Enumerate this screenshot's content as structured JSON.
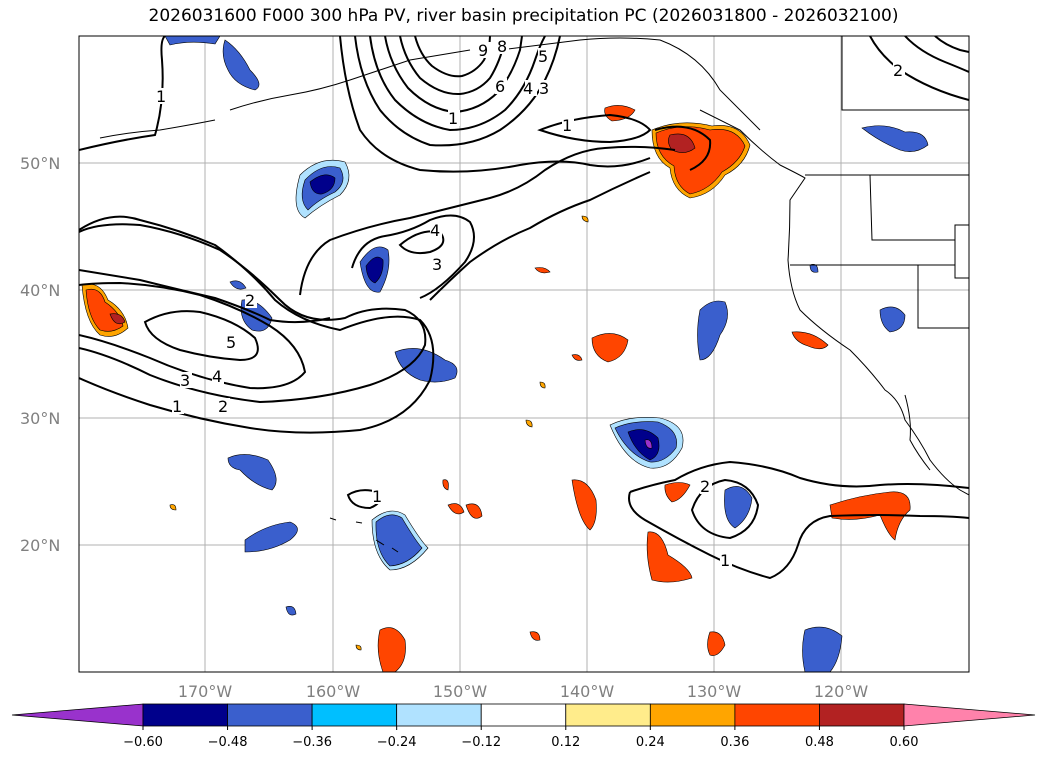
{
  "title": "2026031600 F000 300 hPa PV, river basin precipitation PC (2026031800 - 2026032100)",
  "lat_labels": [
    "50°N",
    "40°N",
    "30°N",
    "20°N"
  ],
  "lon_labels": [
    "170°W",
    "160°W",
    "150°W",
    "140°W",
    "130°W",
    "120°W"
  ],
  "colorbar": {
    "tick_labels": [
      "−0.60",
      "−0.48",
      "−0.36",
      "−0.24",
      "−0.12",
      "0.12",
      "0.24",
      "0.36",
      "0.48",
      "0.60"
    ],
    "colors": [
      "#9932cc",
      "#00008b",
      "#3a5fcd",
      "#00bfff",
      "#b0e2ff",
      "#ffffff",
      "#ffec8b",
      "#ffa500",
      "#ff4500",
      "#b22222",
      "#ff82ab"
    ]
  },
  "pv_contour_labels": [
    "1",
    "2",
    "3",
    "4",
    "5",
    "6",
    "8",
    "9",
    "3",
    "4",
    "1",
    "1",
    "2",
    "3",
    "4",
    "5",
    "1",
    "2",
    "1",
    "2",
    "1"
  ]
}
